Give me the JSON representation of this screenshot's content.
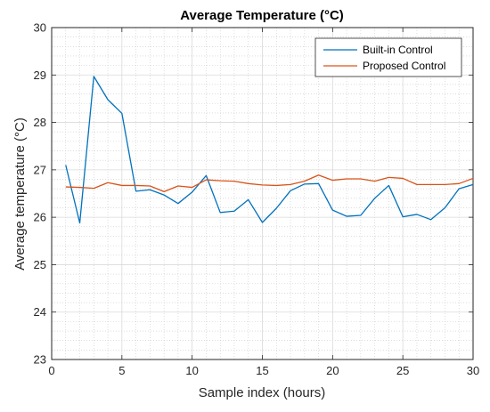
{
  "chart_data": {
    "type": "line",
    "title": "Average Temperature (°C)",
    "xlabel": "Sample index (hours)",
    "ylabel": "Average temperature (°C)",
    "xlim": [
      0,
      30
    ],
    "ylim": [
      23,
      30
    ],
    "xticks": [
      0,
      5,
      10,
      15,
      20,
      25,
      30
    ],
    "yticks": [
      23,
      24,
      25,
      26,
      27,
      28,
      29,
      30
    ],
    "grid": true,
    "minor_grid": true,
    "legend_position": "top-right",
    "x": [
      1,
      2,
      3,
      4,
      5,
      6,
      7,
      8,
      9,
      10,
      11,
      12,
      13,
      14,
      15,
      16,
      17,
      18,
      19,
      20,
      21,
      22,
      23,
      24,
      25,
      26,
      27,
      28,
      29,
      30
    ],
    "series": [
      {
        "name": "Built-in Control",
        "color": "#0072BD",
        "values": [
          27.1,
          25.88,
          28.97,
          28.48,
          28.19,
          26.55,
          26.58,
          26.47,
          26.29,
          26.53,
          26.88,
          26.1,
          26.13,
          26.37,
          25.89,
          26.19,
          26.56,
          26.7,
          26.71,
          26.15,
          26.02,
          26.04,
          26.4,
          26.67,
          26.01,
          26.06,
          25.95,
          26.2,
          26.6,
          26.69
        ]
      },
      {
        "name": "Proposed Control",
        "color": "#D95319",
        "values": [
          26.64,
          26.63,
          26.61,
          26.73,
          26.67,
          26.67,
          26.66,
          26.54,
          26.66,
          26.63,
          26.79,
          26.77,
          26.76,
          26.71,
          26.68,
          26.67,
          26.69,
          26.76,
          26.89,
          26.78,
          26.81,
          26.81,
          26.76,
          26.84,
          26.82,
          26.69,
          26.69,
          26.69,
          26.71,
          26.82
        ]
      }
    ]
  }
}
